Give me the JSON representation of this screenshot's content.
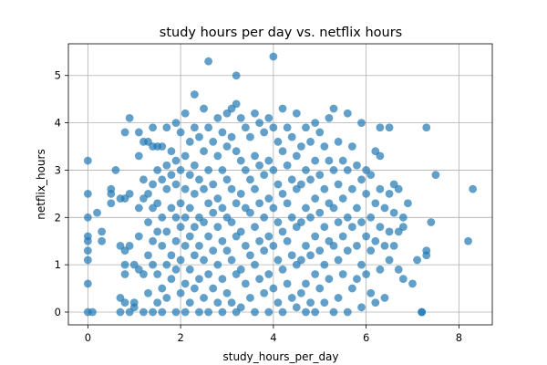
{
  "chart_data": {
    "type": "scatter",
    "title": "study hours per day vs. netflix hours",
    "xlabel": "study_hours_per_day",
    "ylabel": "netflix_hours",
    "xlim": [
      -0.42,
      8.72
    ],
    "ylim": [
      -0.27,
      5.67
    ],
    "xticks": [
      "0",
      "2",
      "4",
      "6",
      "8"
    ],
    "yticks": [
      "0",
      "1",
      "2",
      "3",
      "4",
      "5"
    ],
    "xtick_values": [
      0,
      2,
      4,
      6,
      8
    ],
    "ytick_values": [
      0,
      1,
      2,
      3,
      4,
      5
    ],
    "grid": true,
    "marker_color": "#1f77b4",
    "marker_alpha": 0.7,
    "points": [
      [
        0.0,
        3.2
      ],
      [
        0.0,
        2.5
      ],
      [
        0.0,
        2.0
      ],
      [
        0.0,
        1.6
      ],
      [
        0.0,
        1.5
      ],
      [
        0.0,
        1.3
      ],
      [
        0.0,
        1.1
      ],
      [
        0.0,
        0.6
      ],
      [
        0.0,
        0.0
      ],
      [
        0.1,
        0.0
      ],
      [
        0.2,
        2.1
      ],
      [
        0.3,
        1.7
      ],
      [
        0.3,
        1.5
      ],
      [
        0.5,
        2.6
      ],
      [
        0.5,
        2.5
      ],
      [
        0.5,
        2.3
      ],
      [
        0.6,
        3.0
      ],
      [
        0.7,
        2.4
      ],
      [
        0.7,
        1.4
      ],
      [
        0.7,
        0.3
      ],
      [
        0.7,
        0.0
      ],
      [
        0.8,
        3.8
      ],
      [
        0.8,
        2.4
      ],
      [
        0.8,
        1.3
      ],
      [
        0.8,
        1.0
      ],
      [
        0.8,
        0.8
      ],
      [
        0.8,
        0.2
      ],
      [
        0.9,
        4.1
      ],
      [
        0.9,
        2.5
      ],
      [
        0.9,
        1.4
      ],
      [
        0.9,
        0.0
      ],
      [
        1.0,
        1.0
      ],
      [
        1.0,
        0.2
      ],
      [
        1.0,
        0.1
      ],
      [
        1.1,
        3.8
      ],
      [
        1.1,
        3.3
      ],
      [
        1.1,
        2.2
      ],
      [
        1.1,
        1.6
      ],
      [
        1.1,
        0.9
      ],
      [
        1.2,
        3.6
      ],
      [
        1.2,
        2.8
      ],
      [
        1.2,
        2.4
      ],
      [
        1.2,
        0.8
      ],
      [
        1.2,
        0.0
      ],
      [
        1.3,
        3.6
      ],
      [
        1.3,
        2.5
      ],
      [
        1.3,
        1.9
      ],
      [
        1.3,
        1.2
      ],
      [
        1.3,
        0.4
      ],
      [
        1.4,
        3.9
      ],
      [
        1.4,
        3.5
      ],
      [
        1.4,
        2.7
      ],
      [
        1.4,
        2.2
      ],
      [
        1.4,
        1.5
      ],
      [
        1.4,
        1.0
      ],
      [
        1.4,
        0.0
      ],
      [
        1.5,
        3.5
      ],
      [
        1.5,
        3.0
      ],
      [
        1.5,
        2.3
      ],
      [
        1.5,
        1.7
      ],
      [
        1.5,
        0.8
      ],
      [
        1.5,
        0.2
      ],
      [
        1.6,
        3.5
      ],
      [
        1.6,
        2.8
      ],
      [
        1.6,
        2.0
      ],
      [
        1.6,
        1.4
      ],
      [
        1.6,
        0.5
      ],
      [
        1.6,
        0.0
      ],
      [
        1.7,
        3.9
      ],
      [
        1.7,
        3.1
      ],
      [
        1.7,
        2.6
      ],
      [
        1.7,
        1.7
      ],
      [
        1.7,
        1.0
      ],
      [
        1.7,
        0.3
      ],
      [
        1.8,
        3.4
      ],
      [
        1.8,
        2.9
      ],
      [
        1.8,
        2.2
      ],
      [
        1.8,
        1.2
      ],
      [
        1.8,
        0.7
      ],
      [
        1.9,
        4.0
      ],
      [
        1.9,
        3.2
      ],
      [
        1.9,
        2.7
      ],
      [
        1.9,
        2.0
      ],
      [
        1.9,
        1.5
      ],
      [
        1.9,
        0.9
      ],
      [
        1.9,
        0.0
      ],
      [
        2.0,
        3.8
      ],
      [
        2.0,
        3.0
      ],
      [
        2.0,
        2.3
      ],
      [
        2.0,
        1.8
      ],
      [
        2.0,
        1.1
      ],
      [
        2.0,
        0.4
      ],
      [
        2.1,
        4.2
      ],
      [
        2.1,
        3.3
      ],
      [
        2.1,
        2.6
      ],
      [
        2.1,
        2.0
      ],
      [
        2.1,
        1.4
      ],
      [
        2.1,
        0.6
      ],
      [
        2.1,
        0.0
      ],
      [
        2.2,
        3.6
      ],
      [
        2.2,
        2.9
      ],
      [
        2.2,
        2.2
      ],
      [
        2.2,
        1.6
      ],
      [
        2.2,
        0.9
      ],
      [
        2.2,
        0.2
      ],
      [
        2.3,
        4.6
      ],
      [
        2.3,
        3.9
      ],
      [
        2.3,
        3.1
      ],
      [
        2.3,
        2.5
      ],
      [
        2.3,
        1.8
      ],
      [
        2.3,
        1.2
      ],
      [
        2.3,
        0.5
      ],
      [
        2.4,
        3.7
      ],
      [
        2.4,
        2.8
      ],
      [
        2.4,
        2.0
      ],
      [
        2.4,
        1.4
      ],
      [
        2.4,
        0.7
      ],
      [
        2.4,
        0.0
      ],
      [
        2.5,
        4.3
      ],
      [
        2.5,
        3.4
      ],
      [
        2.5,
        2.6
      ],
      [
        2.5,
        1.9
      ],
      [
        2.5,
        1.1
      ],
      [
        2.5,
        0.3
      ],
      [
        2.6,
        5.3
      ],
      [
        2.6,
        3.9
      ],
      [
        2.6,
        3.0
      ],
      [
        2.6,
        2.3
      ],
      [
        2.6,
        1.6
      ],
      [
        2.6,
        0.8
      ],
      [
        2.6,
        0.0
      ],
      [
        2.7,
        3.6
      ],
      [
        2.7,
        2.7
      ],
      [
        2.7,
        2.1
      ],
      [
        2.7,
        1.3
      ],
      [
        2.7,
        0.5
      ],
      [
        2.8,
        4.1
      ],
      [
        2.8,
        3.3
      ],
      [
        2.8,
        2.4
      ],
      [
        2.8,
        1.8
      ],
      [
        2.8,
        1.0
      ],
      [
        2.8,
        0.2
      ],
      [
        2.9,
        3.8
      ],
      [
        2.9,
        3.0
      ],
      [
        2.9,
        2.2
      ],
      [
        2.9,
        1.5
      ],
      [
        2.9,
        0.7
      ],
      [
        2.9,
        0.0
      ],
      [
        3.0,
        4.2
      ],
      [
        3.0,
        3.5
      ],
      [
        3.0,
        2.8
      ],
      [
        3.0,
        2.0
      ],
      [
        3.0,
        1.3
      ],
      [
        3.0,
        0.4
      ],
      [
        3.1,
        4.3
      ],
      [
        3.1,
        3.7
      ],
      [
        3.1,
        2.6
      ],
      [
        3.1,
        1.9
      ],
      [
        3.1,
        1.1
      ],
      [
        3.1,
        0.2
      ],
      [
        3.2,
        5.0
      ],
      [
        3.2,
        4.4
      ],
      [
        3.2,
        3.4
      ],
      [
        3.2,
        2.3
      ],
      [
        3.2,
        1.6
      ],
      [
        3.2,
        0.8
      ],
      [
        3.2,
        0.0
      ],
      [
        3.3,
        4.1
      ],
      [
        3.3,
        3.2
      ],
      [
        3.3,
        2.5
      ],
      [
        3.3,
        1.7
      ],
      [
        3.3,
        0.9
      ],
      [
        3.3,
        0.1
      ],
      [
        3.4,
        3.9
      ],
      [
        3.4,
        3.0
      ],
      [
        3.4,
        2.2
      ],
      [
        3.4,
        1.4
      ],
      [
        3.4,
        0.6
      ],
      [
        3.5,
        3.7
      ],
      [
        3.5,
        2.8
      ],
      [
        3.5,
        2.1
      ],
      [
        3.5,
        1.2
      ],
      [
        3.5,
        0.3
      ],
      [
        3.6,
        4.2
      ],
      [
        3.6,
        3.3
      ],
      [
        3.6,
        2.6
      ],
      [
        3.6,
        1.8
      ],
      [
        3.6,
        1.0
      ],
      [
        3.6,
        0.0
      ],
      [
        3.7,
        4.0
      ],
      [
        3.7,
        3.1
      ],
      [
        3.7,
        2.3
      ],
      [
        3.7,
        1.5
      ],
      [
        3.7,
        0.7
      ],
      [
        3.8,
        3.8
      ],
      [
        3.8,
        2.9
      ],
      [
        3.8,
        2.0
      ],
      [
        3.8,
        1.3
      ],
      [
        3.8,
        0.4
      ],
      [
        3.9,
        4.1
      ],
      [
        3.9,
        3.2
      ],
      [
        3.9,
        2.4
      ],
      [
        3.9,
        1.6
      ],
      [
        3.9,
        0.8
      ],
      [
        3.9,
        0.0
      ],
      [
        4.0,
        5.4
      ],
      [
        4.0,
        3.9
      ],
      [
        4.0,
        3.0
      ],
      [
        4.0,
        2.2
      ],
      [
        4.0,
        1.4
      ],
      [
        4.0,
        0.5
      ],
      [
        4.1,
        3.6
      ],
      [
        4.1,
        2.7
      ],
      [
        4.1,
        1.9
      ],
      [
        4.1,
        1.1
      ],
      [
        4.1,
        0.2
      ],
      [
        4.2,
        4.3
      ],
      [
        4.2,
        3.4
      ],
      [
        4.2,
        2.5
      ],
      [
        4.2,
        1.7
      ],
      [
        4.2,
        0.9
      ],
      [
        4.2,
        0.0
      ],
      [
        4.3,
        3.9
      ],
      [
        4.3,
        3.1
      ],
      [
        4.3,
        2.3
      ],
      [
        4.3,
        1.5
      ],
      [
        4.3,
        0.6
      ],
      [
        4.4,
        3.7
      ],
      [
        4.4,
        2.8
      ],
      [
        4.4,
        2.0
      ],
      [
        4.4,
        1.2
      ],
      [
        4.4,
        0.3
      ],
      [
        4.5,
        4.2
      ],
      [
        4.5,
        3.3
      ],
      [
        4.5,
        2.6
      ],
      [
        4.5,
        1.8
      ],
      [
        4.5,
        1.0
      ],
      [
        4.5,
        0.1
      ],
      [
        4.6,
        3.5
      ],
      [
        4.6,
        2.7
      ],
      [
        4.6,
        1.9
      ],
      [
        4.6,
        1.1
      ],
      [
        4.6,
        0.4
      ],
      [
        4.7,
        3.9
      ],
      [
        4.7,
        3.0
      ],
      [
        4.7,
        2.2
      ],
      [
        4.7,
        1.4
      ],
      [
        4.7,
        0.6
      ],
      [
        4.7,
        0.0
      ],
      [
        4.8,
        3.6
      ],
      [
        4.8,
        2.8
      ],
      [
        4.8,
        2.0
      ],
      [
        4.8,
        1.2
      ],
      [
        4.8,
        0.2
      ],
      [
        4.9,
        4.0
      ],
      [
        4.9,
        3.2
      ],
      [
        4.9,
        2.4
      ],
      [
        4.9,
        1.6
      ],
      [
        4.9,
        0.8
      ],
      [
        4.9,
        0.0
      ],
      [
        5.0,
        3.8
      ],
      [
        5.0,
        2.9
      ],
      [
        5.0,
        2.1
      ],
      [
        5.0,
        1.3
      ],
      [
        5.0,
        0.5
      ],
      [
        5.1,
        3.5
      ],
      [
        5.1,
        2.6
      ],
      [
        5.1,
        1.8
      ],
      [
        5.1,
        1.0
      ],
      [
        5.1,
        0.2
      ],
      [
        5.2,
        4.1
      ],
      [
        5.2,
        3.2
      ],
      [
        5.2,
        2.3
      ],
      [
        5.2,
        1.5
      ],
      [
        5.2,
        0.7
      ],
      [
        5.3,
        4.3
      ],
      [
        5.3,
        3.0
      ],
      [
        5.3,
        2.2
      ],
      [
        5.3,
        1.4
      ],
      [
        5.3,
        0.0
      ],
      [
        5.4,
        3.6
      ],
      [
        5.4,
        2.7
      ],
      [
        5.4,
        1.9
      ],
      [
        5.4,
        1.1
      ],
      [
        5.4,
        0.3
      ],
      [
        5.5,
        3.2
      ],
      [
        5.5,
        2.4
      ],
      [
        5.5,
        1.6
      ],
      [
        5.5,
        0.8
      ],
      [
        5.6,
        4.2
      ],
      [
        5.6,
        3.0
      ],
      [
        5.6,
        2.0
      ],
      [
        5.6,
        1.3
      ],
      [
        5.6,
        0.0
      ],
      [
        5.7,
        3.5
      ],
      [
        5.7,
        2.6
      ],
      [
        5.7,
        1.8
      ],
      [
        5.7,
        0.5
      ],
      [
        5.8,
        3.1
      ],
      [
        5.8,
        2.2
      ],
      [
        5.8,
        1.4
      ],
      [
        5.8,
        0.7
      ],
      [
        5.9,
        4.0
      ],
      [
        5.9,
        2.8
      ],
      [
        5.9,
        1.9
      ],
      [
        5.9,
        1.0
      ],
      [
        5.9,
        0.1
      ],
      [
        6.0,
        3.0
      ],
      [
        6.0,
        2.5
      ],
      [
        6.0,
        1.6
      ],
      [
        6.0,
        0.8
      ],
      [
        6.1,
        2.9
      ],
      [
        6.1,
        2.0
      ],
      [
        6.1,
        1.3
      ],
      [
        6.1,
        0.4
      ],
      [
        6.2,
        3.4
      ],
      [
        6.2,
        2.3
      ],
      [
        6.2,
        1.5
      ],
      [
        6.2,
        0.2
      ],
      [
        6.3,
        3.9
      ],
      [
        6.3,
        3.3
      ],
      [
        6.3,
        2.6
      ],
      [
        6.3,
        1.8
      ],
      [
        6.3,
        0.9
      ],
      [
        6.4,
        2.2
      ],
      [
        6.4,
        1.4
      ],
      [
        6.4,
        0.3
      ],
      [
        6.5,
        3.9
      ],
      [
        6.5,
        2.5
      ],
      [
        6.5,
        1.7
      ],
      [
        6.5,
        1.1
      ],
      [
        6.6,
        2.7
      ],
      [
        6.6,
        2.1
      ],
      [
        6.6,
        1.4
      ],
      [
        6.7,
        2.6
      ],
      [
        6.7,
        1.7
      ],
      [
        6.7,
        0.9
      ],
      [
        6.8,
        2.0
      ],
      [
        6.8,
        1.8
      ],
      [
        6.8,
        0.7
      ],
      [
        6.9,
        2.3
      ],
      [
        7.0,
        0.6
      ],
      [
        7.1,
        1.1
      ],
      [
        7.2,
        0.0
      ],
      [
        7.2,
        0.0
      ],
      [
        7.3,
        3.9
      ],
      [
        7.3,
        1.3
      ],
      [
        7.3,
        1.2
      ],
      [
        7.4,
        1.9
      ],
      [
        7.5,
        2.9
      ],
      [
        8.2,
        1.5
      ],
      [
        8.3,
        2.6
      ]
    ]
  }
}
